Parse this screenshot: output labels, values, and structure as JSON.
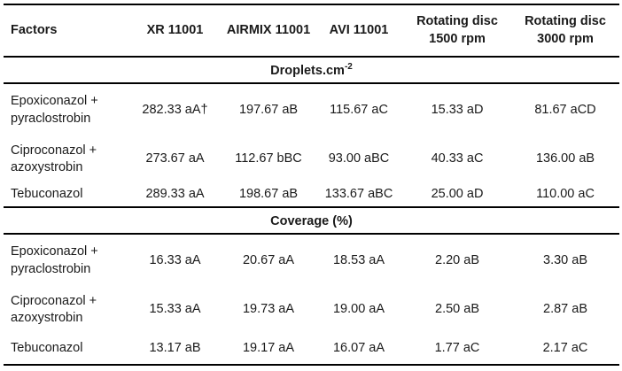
{
  "table": {
    "columns": [
      "Factors",
      "XR 11001",
      "AIRMIX 11001",
      "AVI 11001",
      "Rotating disc 1500 rpm",
      "Rotating disc 3000 rpm"
    ],
    "sections": [
      {
        "title": "Droplets.cm",
        "title_sup": "-2",
        "rows": [
          {
            "factor": "Epoxiconazol + pyraclostrobin",
            "values": [
              "282.33 aA†",
              "197.67 aB",
              "115.67 aC",
              "15.33 aD",
              "81.67 aCD"
            ]
          },
          {
            "factor": "Ciproconazol + azoxystrobin",
            "values": [
              "273.67 aA",
              "112.67 bBC",
              "93.00 aBC",
              "40.33 aC",
              "136.00 aB"
            ]
          },
          {
            "factor": "Tebuconazol",
            "values": [
              "289.33 aA",
              "198.67 aB",
              "133.67 aBC",
              "25.00 aD",
              "110.00 aC"
            ]
          }
        ]
      },
      {
        "title": "Coverage (%)",
        "title_sup": "",
        "rows": [
          {
            "factor": "Epoxiconazol + pyraclostrobin",
            "values": [
              "16.33 aA",
              "20.67 aA",
              "18.53 aA",
              "2.20 aB",
              "3.30 aB"
            ]
          },
          {
            "factor": "Ciproconazol + azoxystrobin",
            "values": [
              "15.33 aA",
              "19.73 aA",
              "19.00 aA",
              "2.50 aB",
              "2.87 aB"
            ]
          },
          {
            "factor": "Tebuconazol",
            "values": [
              "13.17 aB",
              "19.17 aA",
              "16.07 aA",
              "1.77 aC",
              "2.17 aC"
            ]
          }
        ]
      }
    ]
  },
  "colors": {
    "text": "#1a1a1a",
    "rule": "#000000",
    "background": "#ffffff"
  }
}
